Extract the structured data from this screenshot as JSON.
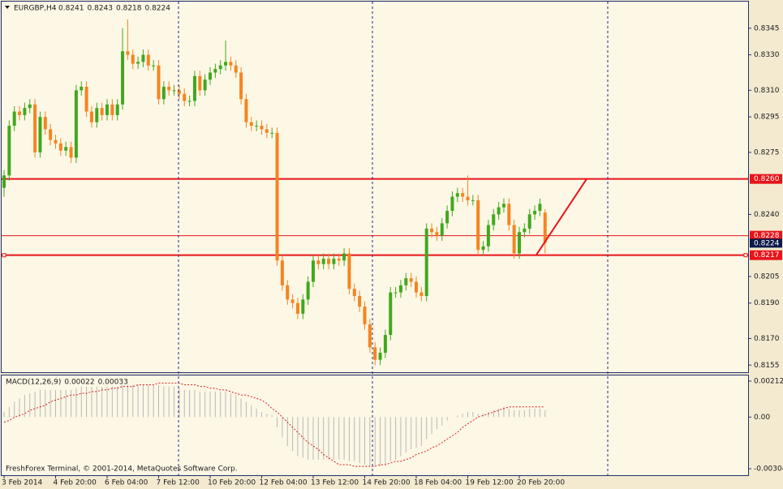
{
  "chart_data": {
    "type": "candlestick",
    "title": "EURGBP,H4",
    "ohlc_label": [
      0.8241,
      0.8243,
      0.8218,
      0.8224
    ],
    "categories": [
      "3 Feb 2014",
      null,
      null,
      null,
      null,
      null,
      null,
      null,
      null,
      null,
      "4 Feb 20:00",
      null,
      null,
      null,
      null,
      null,
      null,
      null,
      null,
      null,
      "6 Feb 04:00",
      null,
      null,
      null,
      null,
      null,
      null,
      null,
      null,
      null,
      "7 Feb 12:00",
      null,
      null,
      null,
      null,
      null,
      null,
      null,
      null,
      null,
      "10 Feb 20:00",
      null,
      null,
      null,
      null,
      null,
      null,
      null,
      null,
      null,
      "12 Feb 04:00",
      null,
      null,
      null,
      null,
      null,
      null,
      null,
      null,
      null,
      "13 Feb 12:00",
      null,
      null,
      null,
      null,
      null,
      null,
      null,
      null,
      null,
      "14 Feb 20:00",
      null,
      null,
      null,
      null,
      null,
      null,
      null,
      null,
      null,
      "18 Feb 04:00",
      null,
      null,
      null,
      null,
      null,
      null,
      null,
      null,
      null,
      "19 Feb 12:00",
      null,
      null,
      null,
      null,
      null,
      null,
      null,
      null,
      null,
      "20 Feb 20:00",
      null,
      null,
      null,
      null,
      null
    ],
    "open": [
      0.8255,
      0.8262,
      0.829,
      0.8298,
      0.8296,
      0.83,
      0.8302,
      0.8275,
      0.8295,
      0.8288,
      0.8282,
      0.828,
      0.8276,
      0.8278,
      0.8272,
      0.831,
      0.8312,
      0.8298,
      0.8292,
      0.83,
      0.8296,
      0.8302,
      0.8296,
      0.8302,
      0.8332,
      0.833,
      0.8325,
      0.8326,
      0.833,
      0.8324,
      0.8324,
      0.8305,
      0.8312,
      0.831,
      0.831,
      0.8308,
      0.8304,
      0.8304,
      0.8318,
      0.831,
      0.8316,
      0.832,
      0.8322,
      0.8324,
      0.8326,
      0.8324,
      0.832,
      0.8305,
      0.8292,
      0.829,
      0.829,
      0.8288,
      0.8286,
      0.8286,
      0.8214,
      0.82,
      0.8192,
      0.819,
      0.8184,
      0.8192,
      0.8202,
      0.8214,
      0.8212,
      0.8215,
      0.8212,
      0.8215,
      0.8214,
      0.8218,
      0.8198,
      0.8194,
      0.8188,
      0.8178,
      0.8165,
      0.8158,
      0.8162,
      0.8172,
      0.8196,
      0.8196,
      0.82,
      0.8204,
      0.8202,
      0.8196,
      0.8194,
      0.8232,
      0.823,
      0.8228,
      0.8235,
      0.8242,
      0.825,
      0.8252,
      0.825,
      0.8248,
      0.8248,
      0.822,
      0.8222,
      0.8234,
      0.824,
      0.8244,
      0.8246,
      0.8234,
      0.8218,
      0.823,
      0.8232,
      0.824,
      0.8242,
      0.8241
    ],
    "high": [
      0.8265,
      0.8293,
      0.8301,
      0.8301,
      0.8303,
      0.8305,
      0.8305,
      0.8298,
      0.8298,
      0.8291,
      0.8285,
      0.8283,
      0.8281,
      0.8281,
      0.8313,
      0.8315,
      0.8315,
      0.8301,
      0.8303,
      0.8303,
      0.8305,
      0.8305,
      0.8305,
      0.8345,
      0.835,
      0.8333,
      0.8329,
      0.8333,
      0.8333,
      0.8327,
      0.8327,
      0.8315,
      0.8315,
      0.8313,
      0.8313,
      0.8311,
      0.8307,
      0.8321,
      0.8321,
      0.8319,
      0.8323,
      0.8325,
      0.8327,
      0.8338,
      0.8329,
      0.8327,
      0.8323,
      0.8308,
      0.8295,
      0.8293,
      0.8293,
      0.8291,
      0.8289,
      0.8289,
      0.8217,
      0.8203,
      0.8195,
      0.8193,
      0.8195,
      0.8205,
      0.8217,
      0.8217,
      0.8218,
      0.8218,
      0.8218,
      0.8218,
      0.8221,
      0.8221,
      0.8201,
      0.8197,
      0.8191,
      0.8181,
      0.8168,
      0.8165,
      0.8175,
      0.8199,
      0.8199,
      0.8203,
      0.8207,
      0.8207,
      0.8205,
      0.8199,
      0.8235,
      0.8235,
      0.8233,
      0.8238,
      0.8245,
      0.8253,
      0.8255,
      0.8255,
      0.8262,
      0.8251,
      0.8251,
      0.8225,
      0.8237,
      0.8243,
      0.8247,
      0.8249,
      0.8249,
      0.8237,
      0.8233,
      0.8235,
      0.8243,
      0.8245,
      0.8249,
      0.8243
    ],
    "low": [
      0.825,
      0.8259,
      0.8287,
      0.8293,
      0.8293,
      0.8297,
      0.8272,
      0.8272,
      0.8285,
      0.8279,
      0.8277,
      0.8273,
      0.8273,
      0.8269,
      0.8269,
      0.8307,
      0.8295,
      0.8289,
      0.8289,
      0.8293,
      0.8293,
      0.8293,
      0.8293,
      0.8299,
      0.8327,
      0.8322,
      0.8322,
      0.8323,
      0.8321,
      0.8321,
      0.8302,
      0.8302,
      0.8307,
      0.8307,
      0.8305,
      0.8301,
      0.8301,
      0.8301,
      0.8307,
      0.8307,
      0.8313,
      0.8317,
      0.8319,
      0.8321,
      0.8321,
      0.8317,
      0.8302,
      0.8289,
      0.8287,
      0.8287,
      0.8285,
      0.8283,
      0.8283,
      0.8211,
      0.8197,
      0.8189,
      0.8187,
      0.8181,
      0.8181,
      0.8189,
      0.8199,
      0.8209,
      0.8209,
      0.8209,
      0.8209,
      0.8211,
      0.8211,
      0.8195,
      0.8191,
      0.8185,
      0.8175,
      0.8162,
      0.8155,
      0.8155,
      0.8159,
      0.8169,
      0.8193,
      0.8193,
      0.8197,
      0.8199,
      0.8193,
      0.8191,
      0.8191,
      0.8227,
      0.8225,
      0.8225,
      0.8232,
      0.8239,
      0.8247,
      0.8247,
      0.8245,
      0.8245,
      0.8217,
      0.8217,
      0.8219,
      0.8231,
      0.8237,
      0.8241,
      0.8231,
      0.8215,
      0.8215,
      0.8227,
      0.8229,
      0.8237,
      0.8239,
      0.8218
    ],
    "close": [
      0.8262,
      0.829,
      0.8298,
      0.8296,
      0.83,
      0.8302,
      0.8275,
      0.8295,
      0.8288,
      0.8282,
      0.828,
      0.8276,
      0.8278,
      0.8272,
      0.831,
      0.8312,
      0.8298,
      0.8292,
      0.83,
      0.8296,
      0.8302,
      0.8296,
      0.8302,
      0.8332,
      0.833,
      0.8325,
      0.8326,
      0.833,
      0.8324,
      0.8324,
      0.8305,
      0.8312,
      0.831,
      0.831,
      0.8308,
      0.8304,
      0.8304,
      0.8318,
      0.831,
      0.8316,
      0.832,
      0.8322,
      0.8324,
      0.8326,
      0.8324,
      0.832,
      0.8305,
      0.8292,
      0.829,
      0.829,
      0.8288,
      0.8286,
      0.8286,
      0.8214,
      0.82,
      0.8192,
      0.819,
      0.8184,
      0.8192,
      0.8202,
      0.8214,
      0.8212,
      0.8215,
      0.8212,
      0.8215,
      0.8214,
      0.8218,
      0.8198,
      0.8194,
      0.8188,
      0.8178,
      0.8165,
      0.8158,
      0.8162,
      0.8172,
      0.8196,
      0.8196,
      0.82,
      0.8204,
      0.8202,
      0.8196,
      0.8194,
      0.8232,
      0.823,
      0.8228,
      0.8235,
      0.8242,
      0.825,
      0.8252,
      0.825,
      0.8248,
      0.8248,
      0.822,
      0.8222,
      0.8234,
      0.824,
      0.8244,
      0.8246,
      0.8234,
      0.8218,
      0.823,
      0.8232,
      0.824,
      0.8242,
      0.8246,
      0.8224
    ],
    "up_color": "#41a81e",
    "down_color": "#f5841f",
    "ylim": [
      0.8151,
      0.836
    ],
    "yticks": [
      0.8345,
      {
        "value": 0.833,
        "label": "0.8330"
      },
      {
        "value": 0.831,
        "label": "0.8310"
      },
      0.8295,
      0.8275,
      {
        "value": 0.824,
        "label": "0.8240"
      },
      0.8205,
      {
        "value": 0.819,
        "label": "0.8190"
      },
      {
        "value": 0.817,
        "label": "0.8170"
      },
      0.8155
    ],
    "levels": [
      {
        "value": 0.826,
        "label": "0.8260"
      },
      0.8217
    ],
    "level_color": "#e8141a",
    "ask": 0.8228,
    "bid": 0.8224,
    "trendline": [
      0.8217,
      0.826
    ],
    "macd": {
      "label": "MACD(12,26,9)",
      "current": [
        0.00022,
        0.00033
      ],
      "histogram": [
        0.0003,
        0.0006,
        0.0009,
        0.0011,
        0.0013,
        0.0014,
        0.0015,
        0.0016,
        0.0016,
        0.0016,
        0.0016,
        0.0016,
        0.0016,
        0.0016,
        0.0017,
        0.0018,
        0.0018,
        0.0018,
        0.0018,
        0.0018,
        0.0018,
        0.0018,
        0.0018,
        0.0019,
        0.0019,
        0.0019,
        0.0019,
        0.0019,
        0.0019,
        0.0019,
        0.0019,
        0.0018,
        0.0018,
        0.0018,
        0.0017,
        0.0016,
        0.0016,
        0.0016,
        0.0015,
        0.0015,
        0.0015,
        0.0015,
        0.0015,
        0.0015,
        0.0014,
        0.0013,
        0.0011,
        0.0009,
        0.0007,
        0.0005,
        0.0003,
        0.0002,
        0.0001,
        -0.0006,
        -0.0012,
        -0.0017,
        -0.002,
        -0.0023,
        -0.0024,
        -0.0025,
        -0.0025,
        -0.0025,
        -0.0025,
        -0.0025,
        -0.0025,
        -0.0025,
        -0.0025,
        -0.0026,
        -0.0026,
        -0.0027,
        -0.0028,
        -0.0029,
        -0.0029,
        -0.0029,
        -0.0028,
        -0.0026,
        -0.0025,
        -0.0023,
        -0.0021,
        -0.0019,
        -0.0018,
        -0.0017,
        -0.0013,
        -0.001,
        -0.0007,
        -0.0005,
        -0.0002,
        0,
        0.0001,
        0.0002,
        0.0003,
        0.0003,
        0.0002,
        0.0002,
        0.0003,
        0.0004,
        0.0005,
        0.0006,
        0.0005,
        0.0004,
        0.0004,
        0.0004,
        0.0005,
        0.0005,
        0.0005,
        0.0004
      ],
      "signal": [
        -0.0003,
        -0.0002,
        0,
        0.0001,
        0.0002,
        0.0004,
        0.0005,
        0.0006,
        0.0007,
        0.0009,
        0.001,
        0.0011,
        0.0012,
        0.0013,
        0.0013,
        0.0014,
        0.0014,
        0.0015,
        0.0015,
        0.0016,
        0.0016,
        0.0017,
        0.0017,
        0.0018,
        0.0018,
        0.0018,
        0.0019,
        0.0019,
        0.0019,
        0.0019,
        0.002,
        0.002,
        0.002,
        0.002,
        0.002,
        0.0019,
        0.0019,
        0.0019,
        0.0018,
        0.0018,
        0.0017,
        0.0017,
        0.0016,
        0.0016,
        0.0015,
        0.0014,
        0.0013,
        0.0013,
        0.0012,
        0.0011,
        0.001,
        0.0008,
        0.0005,
        0.0003,
        0,
        -0.0003,
        -0.0006,
        -0.0009,
        -0.0012,
        -0.0015,
        -0.0017,
        -0.0019,
        -0.0022,
        -0.0024,
        -0.0026,
        -0.0028,
        -0.0028,
        -0.0028,
        -0.0029,
        -0.0029,
        -0.0029,
        -0.0029,
        -0.0029,
        -0.0028,
        -0.0028,
        -0.0027,
        -0.0026,
        -0.0026,
        -0.0025,
        -0.0024,
        -0.0022,
        -0.0021,
        -0.002,
        -0.0018,
        -0.0017,
        -0.0015,
        -0.0013,
        -0.0011,
        -0.0009,
        -0.0006,
        -0.0004,
        -0.0002,
        0,
        0.0001,
        0.0002,
        0.0003,
        0.0004,
        0.0005,
        0.0006,
        0.0006,
        0.0006,
        0.0006,
        0.0006,
        0.0006,
        0.0006,
        0.0006
      ],
      "histogram_color": "#b8b8b8",
      "signal_color": "#d42020",
      "ylim": [
        -0.00342,
        0.00245
      ],
      "yticks": [
        0.00212,
        {
          "value": 0,
          "label": "0.00"
        },
        -0.00304
      ]
    },
    "footer": "FreshForex Terminal, © 2001-2014, MetaQuotes Software Corp."
  }
}
